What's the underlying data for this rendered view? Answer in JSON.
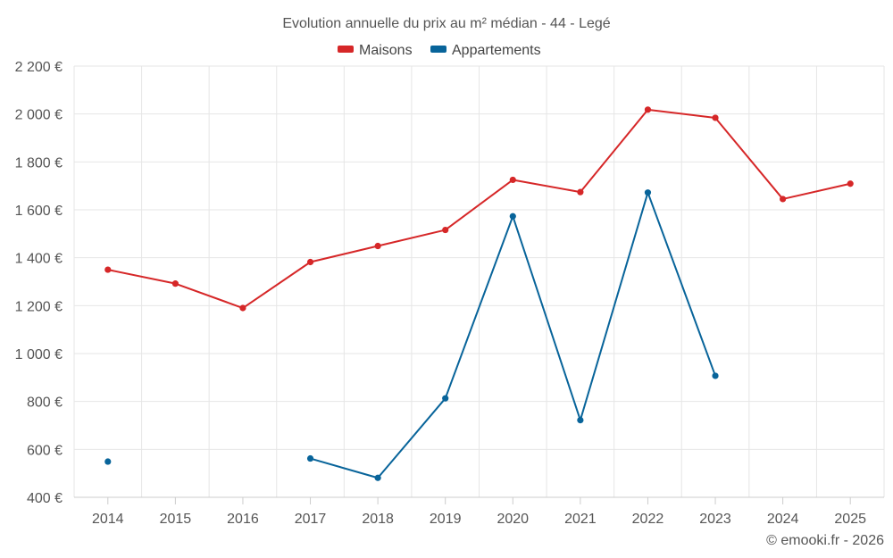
{
  "chart_data": {
    "type": "line",
    "title": "Evolution annuelle du prix au m² médian - 44 - Legé",
    "categories": [
      "2014",
      "2015",
      "2016",
      "2017",
      "2018",
      "2019",
      "2020",
      "2021",
      "2022",
      "2023",
      "2024",
      "2025"
    ],
    "series": [
      {
        "name": "Maisons",
        "color": "#d62728",
        "values": [
          1350,
          1292,
          1190,
          1382,
          1449,
          1516,
          1725,
          1674,
          2018,
          1984,
          1645,
          1709
        ]
      },
      {
        "name": "Appartements",
        "color": "#08649a",
        "values": [
          549,
          null,
          null,
          562,
          481,
          813,
          1573,
          722,
          1672,
          907,
          null,
          null
        ]
      }
    ],
    "ylim": [
      400,
      2200
    ],
    "yticks": [
      400,
      600,
      800,
      1000,
      1200,
      1400,
      1600,
      1800,
      2000,
      2200
    ],
    "ytick_labels": [
      "400 €",
      "600 €",
      "800 €",
      "1 000 €",
      "1 200 €",
      "1 400 €",
      "1 600 €",
      "1 800 €",
      "2 000 €",
      "2 200 €"
    ],
    "grid": true,
    "legend_position": "top-center",
    "xlabel": "",
    "ylabel": ""
  },
  "credit": "© emooki.fr - 2026"
}
